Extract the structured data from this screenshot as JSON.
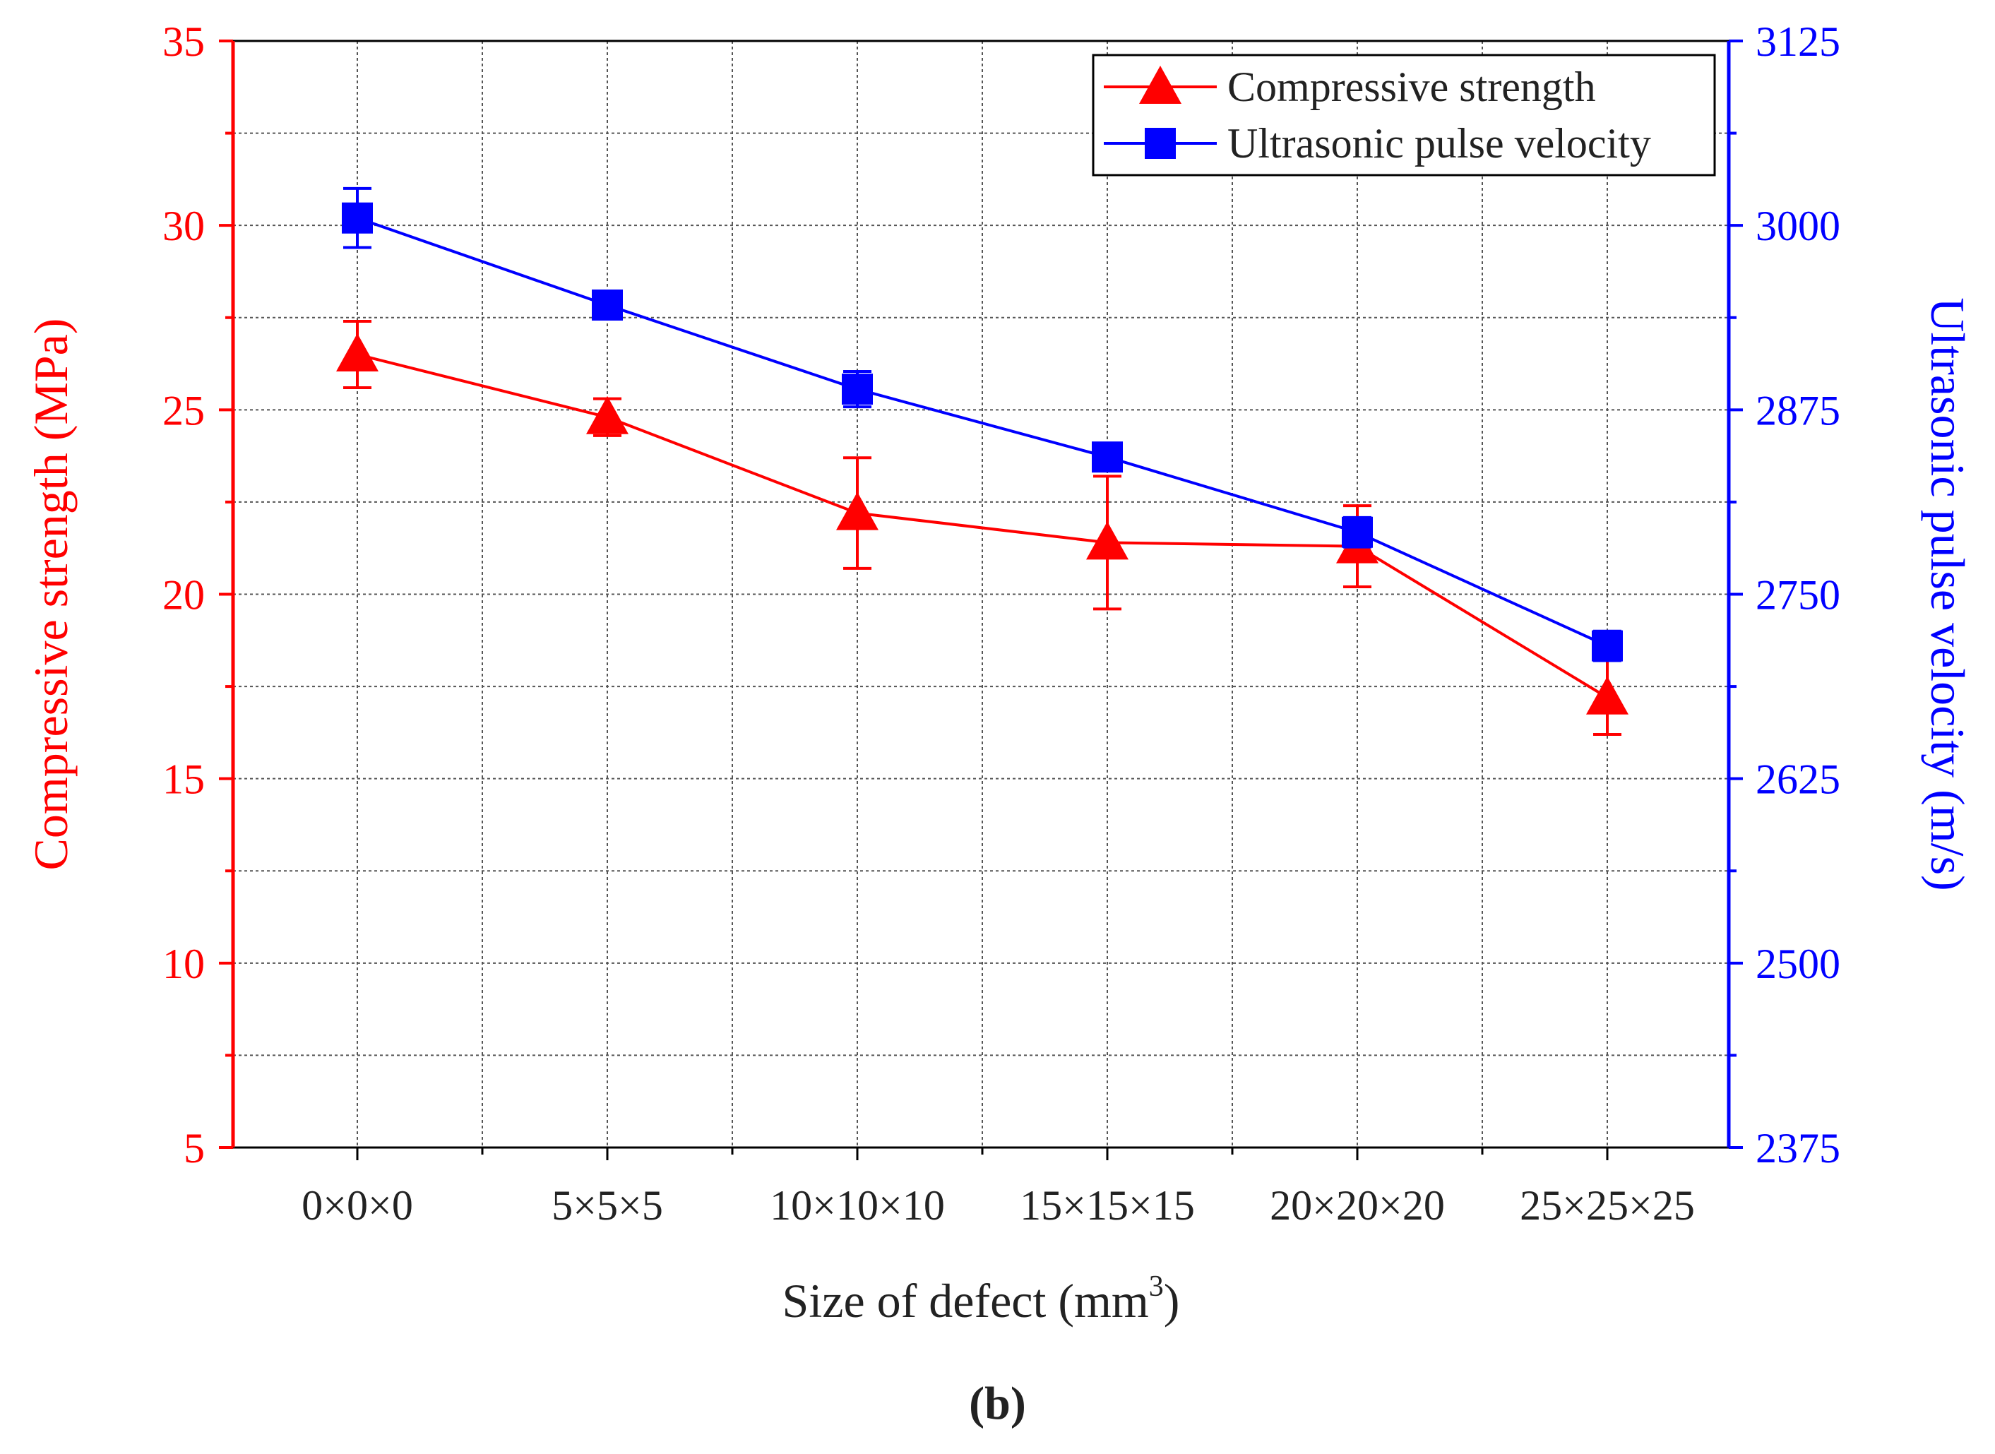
{
  "chart_data": {
    "type": "line",
    "title": "",
    "xlabel": "Size of defect (mm",
    "xlabel_superscript": "3",
    "xlabel_close": ")",
    "ylabel_left": "Compressive strength (MPa)",
    "ylabel_right": "Ultrasonic pulse velocity (m/s)",
    "categories": [
      "0×0×0",
      "5×5×5",
      "10×10×10",
      "15×15×15",
      "20×20×20",
      "25×25×25"
    ],
    "ylim_left": [
      5,
      35
    ],
    "yticks_left": [
      "5",
      "10",
      "15",
      "20",
      "25",
      "30",
      "35"
    ],
    "ylim_right": [
      2375,
      3125
    ],
    "yticks_right": [
      "2375",
      "2500",
      "2625",
      "2750",
      "2875",
      "3000",
      "3125"
    ],
    "grid": true,
    "legend_position": "top-right",
    "series": [
      {
        "name": "Compressive strength",
        "axis": "left",
        "marker": "triangle",
        "color": "#ff0000",
        "values": [
          26.5,
          24.8,
          22.2,
          21.4,
          21.3,
          17.2
        ],
        "errors": [
          0.9,
          0.5,
          1.5,
          1.8,
          1.1,
          1.0
        ]
      },
      {
        "name": "Ultrasonic pulse velocity",
        "axis": "right",
        "marker": "square",
        "color": "#0000ff",
        "values": [
          3005,
          2946,
          2889,
          2843,
          2792,
          2715
        ],
        "errors": [
          20,
          6,
          12,
          6,
          10,
          10
        ]
      }
    ]
  },
  "panel_label": "(b)"
}
